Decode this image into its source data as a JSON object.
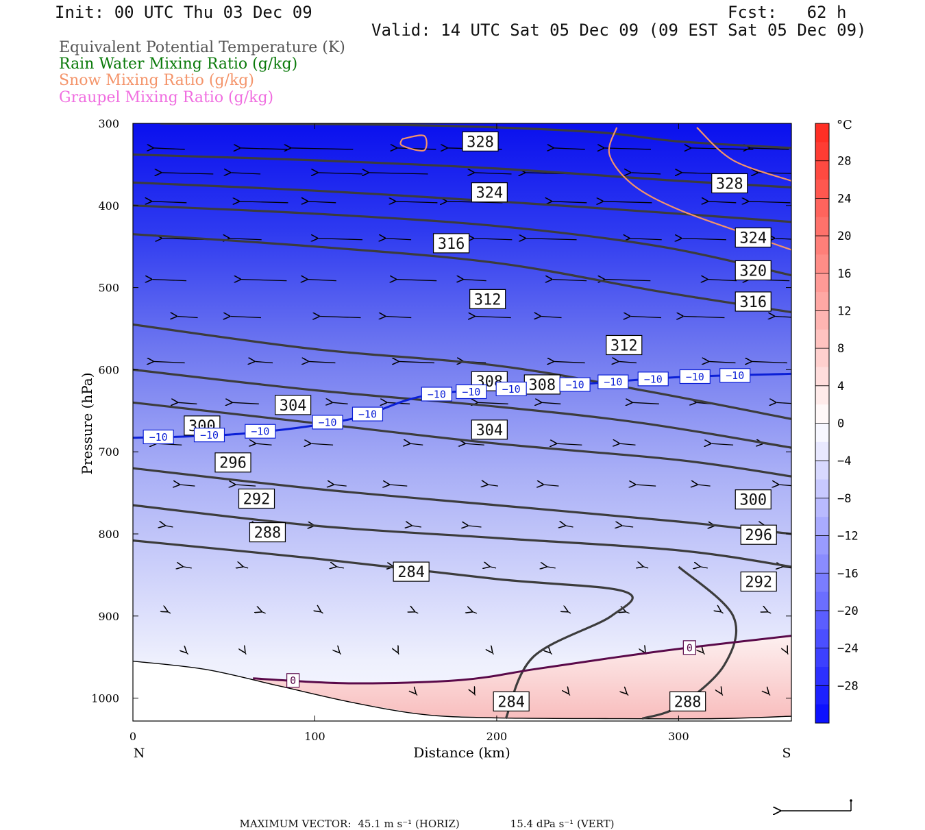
{
  "header": {
    "init": "Init: 00 UTC Thu 03 Dec 09",
    "fcst": "Fcst:   62 h",
    "valid": "Valid: 14 UTC Sat 05 Dec 09 (09 EST Sat 05 Dec 09)"
  },
  "legend": [
    {
      "text": "Equivalent Potential Temperature (K)",
      "color": "#555555"
    },
    {
      "text": "Rain Water Mixing Ratio (g/kg)",
      "color": "#0a7a0a"
    },
    {
      "text": "Snow Mixing Ratio (g/kg)",
      "color": "#f4946a"
    },
    {
      "text": "Graupel Mixing Ratio (g/kg)",
      "color": "#f06ee0"
    }
  ],
  "chart_data": {
    "type": "cross-section",
    "xlabel": "Distance (km)",
    "ylabel": "Pressure (hPa)",
    "xlim": [
      0,
      362
    ],
    "ylim": [
      300,
      1030
    ],
    "x_ticks": [
      0,
      100,
      200,
      300
    ],
    "y_ticks": [
      300,
      400,
      500,
      600,
      700,
      800,
      900,
      1000
    ],
    "left_end_label": "N",
    "right_end_label": "S",
    "colorbar": {
      "unit": "°C",
      "tick_labels": [
        "28",
        "24",
        "20",
        "16",
        "12",
        "8",
        "4",
        "0",
        "−4",
        "−8",
        "−12",
        "−16",
        "−20",
        "−24",
        "−28"
      ],
      "tick_values": [
        28,
        24,
        20,
        16,
        12,
        8,
        4,
        0,
        -4,
        -8,
        -12,
        -16,
        -20,
        -24,
        -28
      ],
      "range": [
        -32,
        32
      ]
    },
    "theta_e_contours": [
      {
        "value": 328,
        "points": [
          [
            15,
            300
          ],
          [
            150,
            302
          ],
          [
            250,
            310
          ],
          [
            300,
            322
          ],
          [
            362,
            330
          ]
        ]
      },
      {
        "value": 324,
        "points": [
          [
            0,
            338
          ],
          [
            100,
            345
          ],
          [
            200,
            355
          ],
          [
            300,
            370
          ],
          [
            362,
            378
          ]
        ]
      },
      {
        "value": 316,
        "points": [
          [
            0,
            372
          ],
          [
            100,
            382
          ],
          [
            200,
            395
          ],
          [
            300,
            410
          ],
          [
            362,
            420
          ]
        ]
      },
      {
        "value": 312,
        "points": [
          [
            0,
            400
          ],
          [
            100,
            410
          ],
          [
            200,
            425
          ],
          [
            290,
            450
          ],
          [
            362,
            485
          ]
        ]
      },
      {
        "value": 308,
        "points": [
          [
            0,
            435
          ],
          [
            100,
            450
          ],
          [
            200,
            470
          ],
          [
            290,
            505
          ],
          [
            362,
            530
          ]
        ]
      },
      {
        "value": 304,
        "points": [
          [
            0,
            545
          ],
          [
            100,
            575
          ],
          [
            200,
            595
          ],
          [
            280,
            625
          ],
          [
            362,
            660
          ]
        ]
      },
      {
        "value": 300,
        "points": [
          [
            0,
            600
          ],
          [
            100,
            625
          ],
          [
            200,
            645
          ],
          [
            280,
            665
          ],
          [
            362,
            695
          ]
        ]
      },
      {
        "value": 296,
        "points": [
          [
            0,
            640
          ],
          [
            100,
            665
          ],
          [
            200,
            690
          ],
          [
            300,
            710
          ],
          [
            362,
            730
          ]
        ]
      },
      {
        "value": 292,
        "points": [
          [
            0,
            720
          ],
          [
            100,
            745
          ],
          [
            200,
            765
          ],
          [
            300,
            785
          ],
          [
            362,
            800
          ]
        ]
      },
      {
        "value": 288,
        "points": [
          [
            0,
            765
          ],
          [
            100,
            790
          ],
          [
            200,
            805
          ],
          [
            300,
            820
          ],
          [
            362,
            840
          ]
        ]
      },
      {
        "value": 284,
        "points": [
          [
            0,
            808
          ],
          [
            100,
            830
          ],
          [
            200,
            855
          ],
          [
            270,
            870
          ],
          [
            263,
            900
          ],
          [
            220,
            950
          ],
          [
            205,
            1025
          ]
        ]
      },
      {
        "value": 288,
        "points": [
          [
            300,
            840
          ],
          [
            330,
            900
          ],
          [
            325,
            960
          ],
          [
            300,
            1010
          ],
          [
            280,
            1025
          ]
        ]
      }
    ],
    "contour_labels": [
      {
        "text": "328",
        "x": 191,
        "p": 322
      },
      {
        "text": "328",
        "x": 328,
        "p": 373
      },
      {
        "text": "324",
        "x": 196,
        "p": 384
      },
      {
        "text": "324",
        "x": 341,
        "p": 439
      },
      {
        "text": "320",
        "x": 341,
        "p": 479
      },
      {
        "text": "316",
        "x": 175,
        "p": 446
      },
      {
        "text": "316",
        "x": 341,
        "p": 517
      },
      {
        "text": "312",
        "x": 195,
        "p": 514
      },
      {
        "text": "312",
        "x": 270,
        "p": 570
      },
      {
        "text": "308",
        "x": 196,
        "p": 614
      },
      {
        "text": "308",
        "x": 225,
        "p": 618
      },
      {
        "text": "304",
        "x": 88,
        "p": 643
      },
      {
        "text": "304",
        "x": 196,
        "p": 673
      },
      {
        "text": "300",
        "x": 38,
        "p": 668
      },
      {
        "text": "300",
        "x": 341,
        "p": 758
      },
      {
        "text": "296",
        "x": 55,
        "p": 713
      },
      {
        "text": "296",
        "x": 344,
        "p": 801
      },
      {
        "text": "292",
        "x": 68,
        "p": 757
      },
      {
        "text": "292",
        "x": 344,
        "p": 858
      },
      {
        "text": "288",
        "x": 74,
        "p": 798
      },
      {
        "text": "284",
        "x": 153,
        "p": 846
      },
      {
        "text": "284",
        "x": 208,
        "p": 1004
      },
      {
        "text": "288",
        "x": 305,
        "p": 1004
      }
    ],
    "isotherm_minus10": {
      "label": "−10",
      "points": [
        [
          0,
          683
        ],
        [
          60,
          678
        ],
        [
          120,
          660
        ],
        [
          165,
          630
        ],
        [
          250,
          617
        ],
        [
          300,
          609
        ],
        [
          362,
          605
        ]
      ],
      "label_x": [
        14,
        42,
        70,
        107,
        129,
        167,
        186,
        208,
        243,
        264,
        286,
        309,
        331
      ]
    },
    "freezing_line": {
      "label": "0",
      "points": [
        [
          66,
          976
        ],
        [
          120,
          982
        ],
        [
          180,
          978
        ],
        [
          220,
          965
        ],
        [
          260,
          952
        ],
        [
          300,
          940
        ],
        [
          362,
          924
        ]
      ],
      "label_x": [
        88,
        306
      ]
    },
    "snow_contours": [
      [
        [
          148,
          319
        ],
        [
          160,
          315
        ],
        [
          160,
          333
        ],
        [
          148,
          327
        ],
        [
          148,
          319
        ]
      ],
      [
        [
          266,
          305
        ],
        [
          262,
          338
        ],
        [
          275,
          375
        ],
        [
          300,
          405
        ],
        [
          340,
          437
        ],
        [
          362,
          454
        ]
      ],
      [
        [
          310,
          305
        ],
        [
          330,
          345
        ],
        [
          362,
          370
        ]
      ]
    ],
    "terrain_pressure": [
      [
        0,
        955
      ],
      [
        40,
        965
      ],
      [
        80,
        985
      ],
      [
        120,
        1005
      ],
      [
        160,
        1020
      ],
      [
        200,
        1024
      ],
      [
        260,
        1025
      ],
      [
        320,
        1025
      ],
      [
        362,
        1022
      ]
    ]
  },
  "footer": {
    "label": "MAXIMUM VECTOR:",
    "horiz": "45.1 m s⁻¹ (HORIZ)",
    "vert": "15.4 dPa s⁻¹ (VERT)"
  }
}
